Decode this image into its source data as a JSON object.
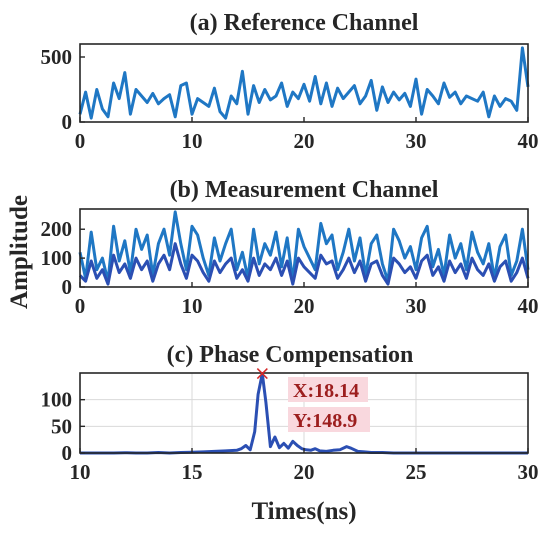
{
  "chart_data": [
    {
      "type": "line",
      "title": "(a) Reference Channel",
      "xlim": [
        0,
        40
      ],
      "ylim": [
        0,
        600
      ],
      "xticks": [
        "0",
        "10",
        "20",
        "30",
        "40"
      ],
      "yticks": [
        "0",
        "500"
      ],
      "grid": false,
      "series": [
        {
          "color": "#1f77c4",
          "x": [
            0,
            0.5,
            1,
            1.5,
            2,
            2.5,
            3,
            3.5,
            4,
            4.5,
            5,
            5.5,
            6,
            6.5,
            7,
            7.5,
            8,
            8.5,
            9,
            9.5,
            10,
            10.5,
            11,
            11.5,
            12,
            12.5,
            13,
            13.5,
            14,
            14.5,
            15,
            15.5,
            16,
            16.5,
            17,
            17.5,
            18,
            18.5,
            19,
            19.5,
            20,
            20.5,
            21,
            21.5,
            22,
            22.5,
            23,
            23.5,
            24,
            24.5,
            25,
            25.5,
            26,
            26.5,
            27,
            27.5,
            28,
            28.5,
            29,
            29.5,
            30,
            30.5,
            31,
            31.5,
            32,
            32.5,
            33,
            33.5,
            34,
            34.5,
            35,
            35.5,
            36,
            36.5,
            37,
            37.5,
            38,
            38.5,
            39,
            39.5,
            40
          ],
          "values": [
            60,
            230,
            30,
            250,
            100,
            40,
            300,
            180,
            380,
            60,
            250,
            200,
            150,
            220,
            140,
            180,
            210,
            40,
            280,
            300,
            60,
            180,
            150,
            120,
            260,
            80,
            30,
            200,
            140,
            390,
            60,
            280,
            150,
            250,
            170,
            200,
            300,
            120,
            230,
            180,
            290,
            160,
            350,
            140,
            300,
            120,
            260,
            180,
            230,
            280,
            140,
            200,
            320,
            90,
            270,
            150,
            230,
            170,
            220,
            120,
            330,
            60,
            250,
            200,
            140,
            300,
            190,
            230,
            140,
            200,
            180,
            160,
            230,
            40,
            200,
            120,
            180,
            160,
            90,
            570,
            270
          ]
        }
      ]
    },
    {
      "type": "line",
      "title": "(b) Measurement Channel",
      "ylabel": "Amplitude",
      "xlim": [
        0,
        40
      ],
      "ylim": [
        0,
        270
      ],
      "xticks": [
        "0",
        "10",
        "20",
        "30",
        "40"
      ],
      "yticks": [
        "0",
        "100",
        "200"
      ],
      "grid": false,
      "series": [
        {
          "color": "#1f77c4",
          "x": [
            0,
            0.5,
            1,
            1.5,
            2,
            2.5,
            3,
            3.5,
            4,
            4.5,
            5,
            5.5,
            6,
            6.5,
            7,
            7.5,
            8,
            8.5,
            9,
            9.5,
            10,
            10.5,
            11,
            11.5,
            12,
            12.5,
            13,
            13.5,
            14,
            14.5,
            15,
            15.5,
            16,
            16.5,
            17,
            17.5,
            18,
            18.5,
            19,
            19.5,
            20,
            20.5,
            21,
            21.5,
            22,
            22.5,
            23,
            23.5,
            24,
            24.5,
            25,
            25.5,
            26,
            26.5,
            27,
            27.5,
            28,
            28.5,
            29,
            29.5,
            30,
            30.5,
            31,
            31.5,
            32,
            32.5,
            33,
            33.5,
            34,
            34.5,
            35,
            35.5,
            36,
            36.5,
            37,
            37.5,
            38,
            38.5,
            39,
            39.5,
            40
          ],
          "values": [
            120,
            30,
            190,
            60,
            100,
            20,
            210,
            90,
            160,
            50,
            200,
            130,
            180,
            40,
            150,
            200,
            110,
            260,
            150,
            60,
            210,
            180,
            100,
            40,
            170,
            90,
            150,
            200,
            60,
            120,
            30,
            200,
            80,
            150,
            110,
            190,
            70,
            170,
            20,
            200,
            140,
            100,
            60,
            220,
            150,
            180,
            60,
            120,
            200,
            90,
            170,
            40,
            150,
            180,
            80,
            20,
            200,
            160,
            100,
            140,
            60,
            170,
            210,
            70,
            130,
            40,
            180,
            100,
            150,
            60,
            190,
            120,
            80,
            150,
            30,
            140,
            180,
            40,
            90,
            200,
            60
          ]
        },
        {
          "color": "#2b4fb3",
          "x": [
            0,
            0.5,
            1,
            1.5,
            2,
            2.5,
            3,
            3.5,
            4,
            4.5,
            5,
            5.5,
            6,
            6.5,
            7,
            7.5,
            8,
            8.5,
            9,
            9.5,
            10,
            10.5,
            11,
            11.5,
            12,
            12.5,
            13,
            13.5,
            14,
            14.5,
            15,
            15.5,
            16,
            16.5,
            17,
            17.5,
            18,
            18.5,
            19,
            19.5,
            20,
            20.5,
            21,
            21.5,
            22,
            22.5,
            23,
            23.5,
            24,
            24.5,
            25,
            25.5,
            26,
            26.5,
            27,
            27.5,
            28,
            28.5,
            29,
            29.5,
            30,
            30.5,
            31,
            31.5,
            32,
            32.5,
            33,
            33.5,
            34,
            34.5,
            35,
            35.5,
            36,
            36.5,
            37,
            37.5,
            38,
            38.5,
            39,
            39.5,
            40
          ],
          "values": [
            40,
            20,
            90,
            30,
            60,
            10,
            110,
            50,
            80,
            30,
            100,
            60,
            90,
            20,
            80,
            110,
            60,
            150,
            80,
            30,
            110,
            90,
            50,
            20,
            90,
            50,
            80,
            100,
            30,
            60,
            20,
            100,
            40,
            80,
            60,
            100,
            40,
            90,
            10,
            100,
            70,
            50,
            30,
            110,
            80,
            90,
            30,
            60,
            100,
            50,
            90,
            20,
            80,
            90,
            40,
            10,
            100,
            80,
            50,
            70,
            30,
            90,
            110,
            40,
            70,
            20,
            90,
            50,
            80,
            30,
            100,
            60,
            40,
            80,
            20,
            70,
            90,
            20,
            50,
            100,
            30
          ]
        }
      ]
    },
    {
      "type": "line",
      "title": "(c) Phase Compensation",
      "xlabel": "Times(ns)",
      "xlim": [
        10,
        30
      ],
      "ylim": [
        0,
        150
      ],
      "xticks": [
        "10",
        "15",
        "20",
        "25",
        "30"
      ],
      "yticks": [
        "0",
        "50",
        "100"
      ],
      "grid": true,
      "datatip": {
        "x_label": "X:18.14",
        "y_label": "Y:148.9",
        "x": 18.14,
        "y": 148.9
      },
      "series": [
        {
          "color": "#2b4fb3",
          "x": [
            10,
            10.5,
            11,
            11.5,
            12,
            12.5,
            13,
            13.5,
            14,
            14.5,
            15,
            15.5,
            16,
            16.5,
            17,
            17.2,
            17.4,
            17.6,
            17.8,
            17.95,
            18.14,
            18.3,
            18.5,
            18.7,
            18.9,
            19.1,
            19.3,
            19.5,
            19.7,
            19.9,
            20.1,
            20.3,
            20.5,
            20.7,
            21,
            21.3,
            21.6,
            21.9,
            22.1,
            22.4,
            22.7,
            23,
            23.5,
            24,
            25,
            26,
            27,
            28,
            29,
            30
          ],
          "values": [
            0,
            0,
            0,
            0,
            0.5,
            0,
            0,
            1,
            0,
            1,
            1.5,
            2,
            3,
            4,
            5,
            8,
            14,
            6,
            40,
            110,
            148.9,
            95,
            12,
            30,
            10,
            18,
            9,
            22,
            14,
            8,
            6,
            5,
            8,
            4,
            3,
            5,
            6,
            12,
            9,
            3,
            2,
            1,
            1,
            0,
            0,
            0,
            0,
            0,
            0,
            0
          ]
        }
      ]
    }
  ]
}
